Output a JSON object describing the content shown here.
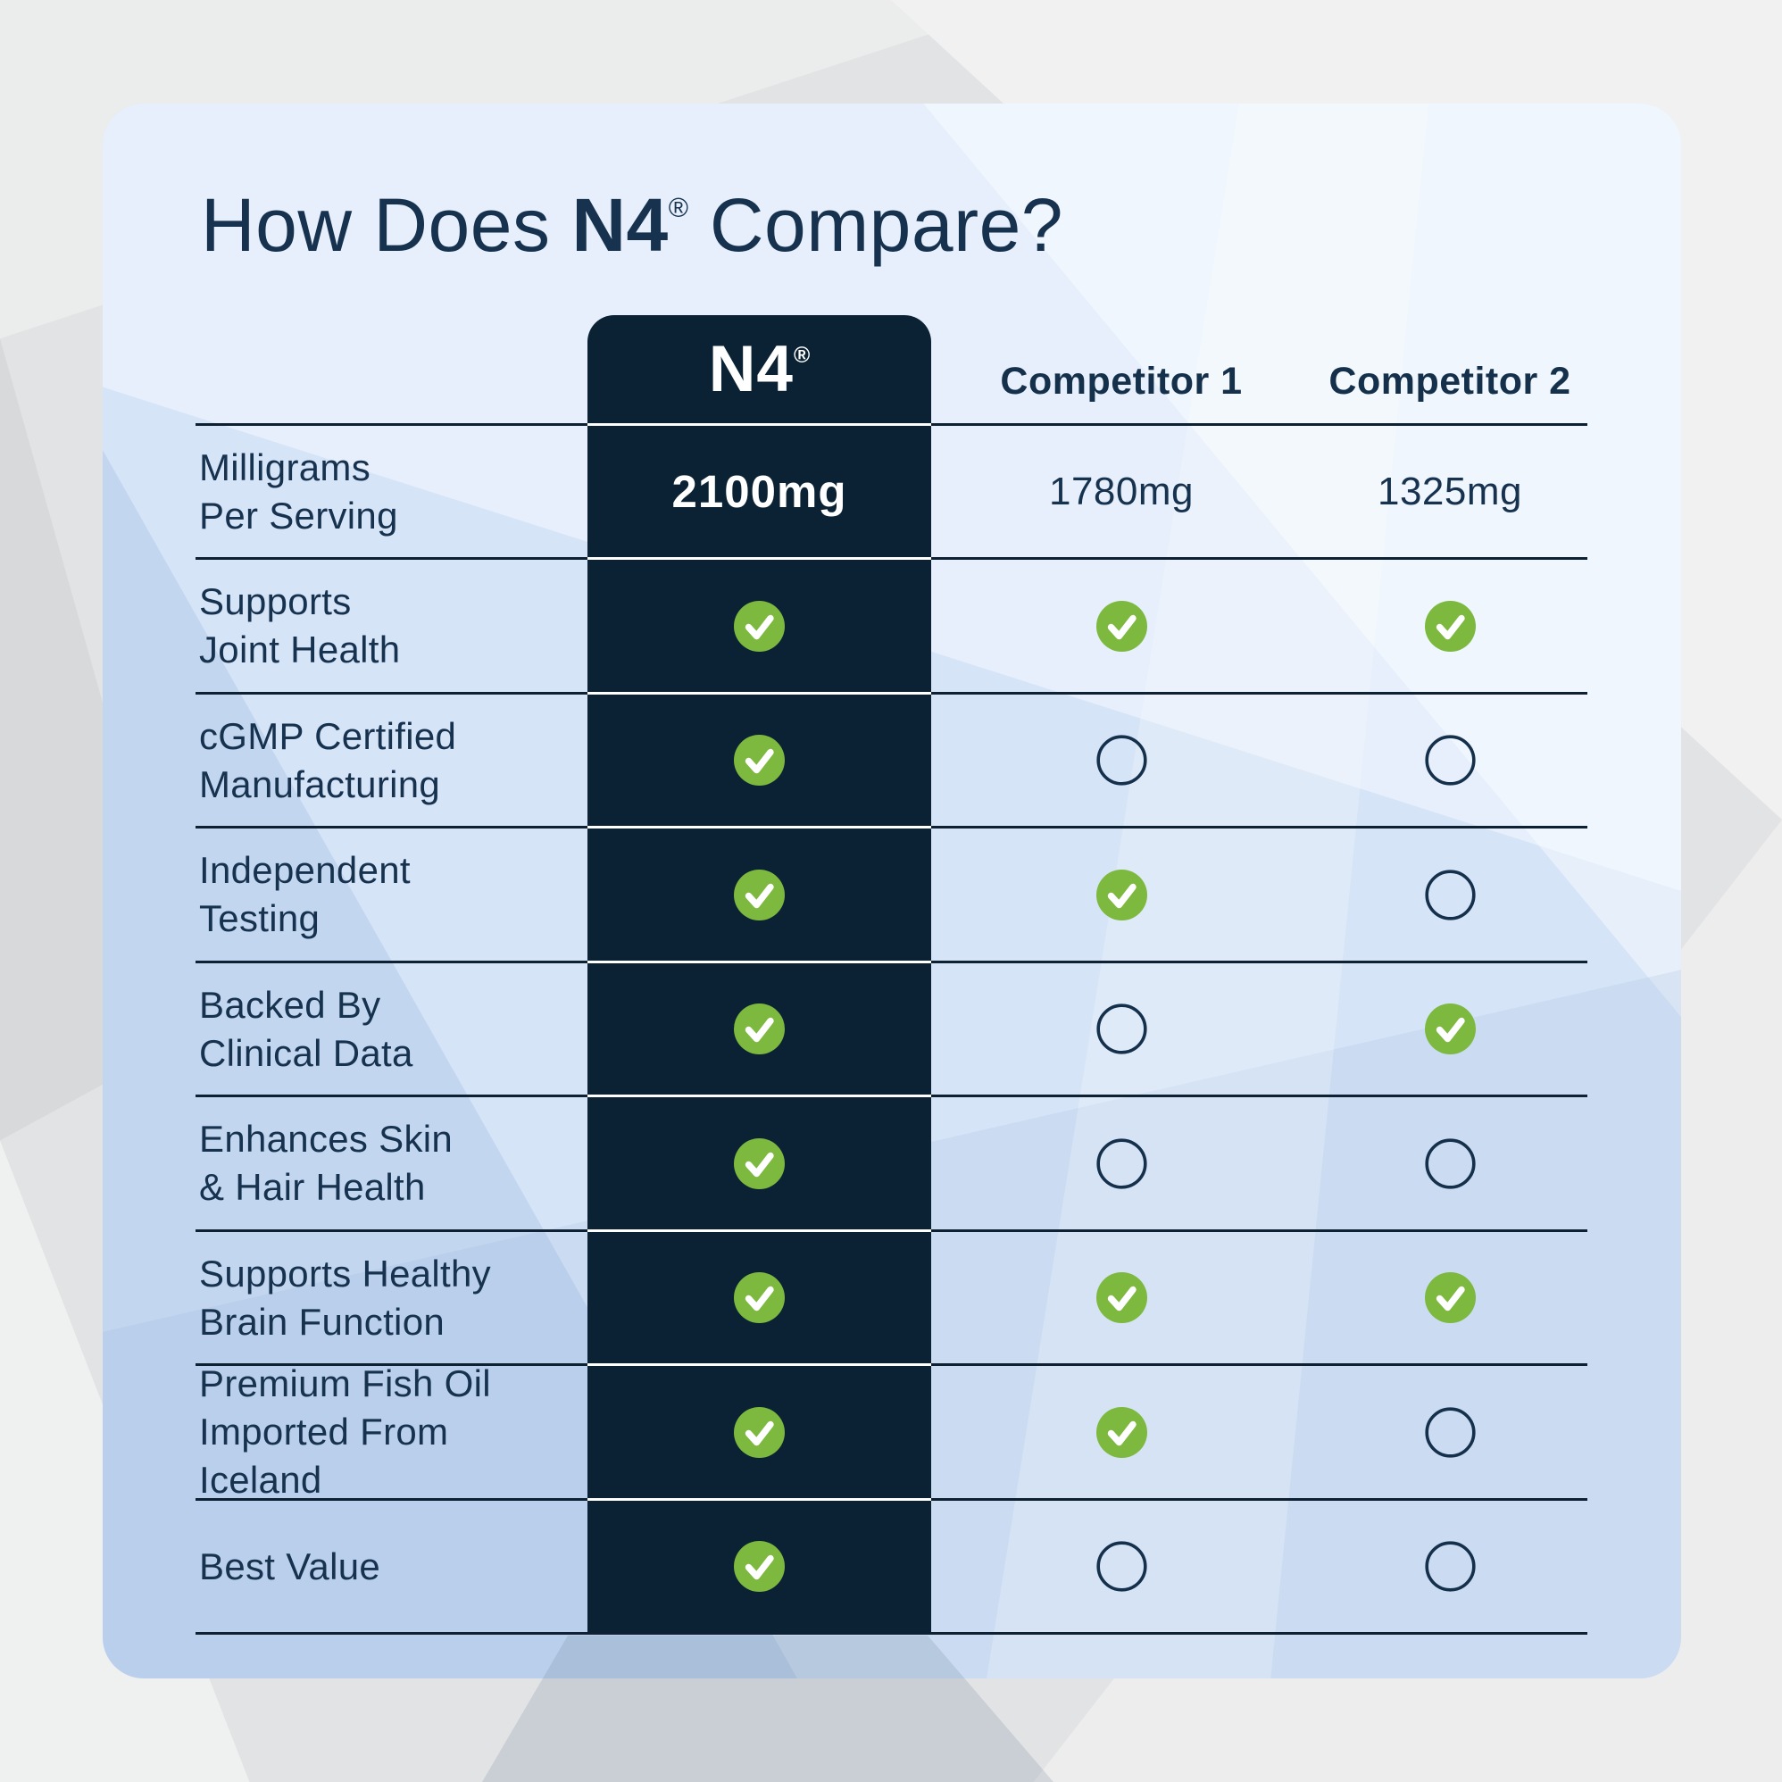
{
  "title": {
    "prefix": "How Does ",
    "brand": "N4",
    "registered": "®",
    "suffix": " Compare?"
  },
  "columns": [
    {
      "label": "N4",
      "registered": "®"
    },
    {
      "label": "Competitor 1"
    },
    {
      "label": "Competitor 2"
    }
  ],
  "rows": [
    {
      "label": "Milligrams\nPer Serving",
      "type": "text",
      "n4": "2100mg",
      "competitor1": "1780mg",
      "competitor2": "1325mg"
    },
    {
      "label": "Supports\nJoint Health",
      "type": "icon",
      "n4": "check",
      "competitor1": "check",
      "competitor2": "check"
    },
    {
      "label": "cGMP Certified\nManufacturing",
      "type": "icon",
      "n4": "check",
      "competitor1": "empty",
      "competitor2": "empty"
    },
    {
      "label": "Independent\nTesting",
      "type": "icon",
      "n4": "check",
      "competitor1": "check",
      "competitor2": "empty"
    },
    {
      "label": "Backed By\nClinical Data",
      "type": "icon",
      "n4": "check",
      "competitor1": "empty",
      "competitor2": "check"
    },
    {
      "label": "Enhances Skin\n& Hair Health",
      "type": "icon",
      "n4": "check",
      "competitor1": "empty",
      "competitor2": "empty"
    },
    {
      "label": "Supports Healthy\nBrain Function",
      "type": "icon",
      "n4": "check",
      "competitor1": "check",
      "competitor2": "check"
    },
    {
      "label": "Premium Fish Oil\nImported From\nIceland",
      "type": "icon",
      "n4": "check",
      "competitor1": "check",
      "competitor2": "empty"
    },
    {
      "label": "Best Value",
      "type": "icon",
      "n4": "check",
      "competitor1": "empty",
      "competitor2": "empty"
    }
  ],
  "icons": {
    "check": "check-icon",
    "empty": "empty-circle-icon"
  },
  "colors": {
    "accent_green": "#7cb93e",
    "column_navy": "#0b2234",
    "text_navy": "#16324e",
    "card_blue": "#d6e4f8",
    "line_navy": "#0d2133",
    "check_white": "#ffffff",
    "circle_stroke": "#14304b"
  },
  "chart_data": {
    "type": "table",
    "title": "How Does N4® Compare?",
    "columns": [
      "N4®",
      "Competitor 1",
      "Competitor 2"
    ],
    "rows": [
      {
        "feature": "Milligrams Per Serving",
        "values": [
          "2100mg",
          "1780mg",
          "1325mg"
        ]
      },
      {
        "feature": "Supports Joint Health",
        "values": [
          true,
          true,
          true
        ]
      },
      {
        "feature": "cGMP Certified Manufacturing",
        "values": [
          true,
          false,
          false
        ]
      },
      {
        "feature": "Independent Testing",
        "values": [
          true,
          true,
          false
        ]
      },
      {
        "feature": "Backed By Clinical Data",
        "values": [
          true,
          false,
          true
        ]
      },
      {
        "feature": "Enhances Skin & Hair Health",
        "values": [
          true,
          false,
          false
        ]
      },
      {
        "feature": "Supports Healthy Brain Function",
        "values": [
          true,
          true,
          true
        ]
      },
      {
        "feature": "Premium Fish Oil Imported From Iceland",
        "values": [
          true,
          true,
          false
        ]
      },
      {
        "feature": "Best Value",
        "values": [
          true,
          false,
          false
        ]
      }
    ]
  }
}
